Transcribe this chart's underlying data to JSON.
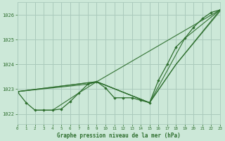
{
  "title": "Graphe pression niveau de la mer (hPa)",
  "bg_color": "#cce8d8",
  "grid_color": "#aacabc",
  "line_color": "#2d6e2d",
  "marker_color": "#2d6e2d",
  "xlim": [
    0,
    23
  ],
  "ylim": [
    1021.6,
    1026.5
  ],
  "xticks": [
    0,
    1,
    2,
    3,
    4,
    5,
    6,
    7,
    8,
    9,
    10,
    11,
    12,
    13,
    14,
    15,
    16,
    17,
    18,
    19,
    20,
    21,
    22,
    23
  ],
  "yticks": [
    1022,
    1023,
    1024,
    1025,
    1026
  ],
  "main_series_x": [
    0,
    1,
    2,
    3,
    4,
    5,
    6,
    7,
    8,
    9,
    10,
    11,
    12,
    13,
    14,
    15,
    16,
    17,
    18,
    19,
    20,
    21,
    22,
    23
  ],
  "main_series_y": [
    1022.9,
    1022.45,
    1022.15,
    1022.15,
    1022.15,
    1022.2,
    1022.5,
    1022.85,
    1023.2,
    1023.3,
    1023.05,
    1022.65,
    1022.65,
    1022.65,
    1022.55,
    1022.45,
    1023.35,
    1024.0,
    1024.7,
    1025.05,
    1025.5,
    1025.85,
    1026.1,
    1026.2
  ],
  "straight_lines": [
    {
      "x": [
        0,
        9,
        23
      ],
      "y": [
        1022.9,
        1023.3,
        1026.2
      ]
    },
    {
      "x": [
        0,
        9,
        15,
        18,
        23
      ],
      "y": [
        1022.9,
        1023.3,
        1022.45,
        1024.0,
        1026.2
      ]
    },
    {
      "x": [
        0,
        8,
        9,
        15,
        18,
        23
      ],
      "y": [
        1022.9,
        1023.2,
        1023.3,
        1022.45,
        1024.0,
        1026.15
      ]
    },
    {
      "x": [
        2,
        4,
        7,
        9,
        15,
        19,
        23
      ],
      "y": [
        1022.15,
        1022.15,
        1022.85,
        1023.3,
        1022.45,
        1025.05,
        1026.2
      ]
    }
  ]
}
